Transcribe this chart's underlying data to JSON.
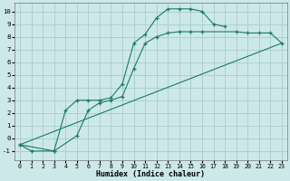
{
  "xlabel": "Humidex (Indice chaleur)",
  "bg_color": "#cde8e8",
  "grid_color": "#aacccc",
  "line_color": "#1a7a6a",
  "xlim": [
    -0.5,
    23.5
  ],
  "ylim": [
    -1.7,
    10.7
  ],
  "xticks": [
    0,
    1,
    2,
    3,
    4,
    5,
    6,
    7,
    8,
    9,
    10,
    11,
    12,
    13,
    14,
    15,
    16,
    17,
    18,
    19,
    20,
    21,
    22,
    23
  ],
  "yticks": [
    -1,
    0,
    1,
    2,
    3,
    4,
    5,
    6,
    7,
    8,
    9,
    10
  ],
  "curve1_x": [
    0,
    1,
    3,
    4,
    5,
    6,
    7,
    8,
    9,
    10,
    11,
    12,
    13,
    14,
    15,
    16,
    17,
    18
  ],
  "curve1_y": [
    -0.5,
    -1.0,
    -1.0,
    2.2,
    3.0,
    3.0,
    3.0,
    3.2,
    4.3,
    7.5,
    8.2,
    9.5,
    10.2,
    10.2,
    10.2,
    10.0,
    9.0,
    8.8
  ],
  "curve2_x": [
    0,
    3,
    5,
    6,
    7,
    8,
    9,
    10,
    11,
    12,
    13,
    14,
    15,
    16,
    19,
    20,
    21,
    22,
    23
  ],
  "curve2_y": [
    -0.5,
    -1.0,
    0.2,
    2.2,
    2.8,
    3.0,
    3.3,
    5.5,
    7.5,
    8.0,
    8.3,
    8.4,
    8.4,
    8.4,
    8.4,
    8.3,
    8.3,
    8.3,
    7.5
  ],
  "curve3_x": [
    0,
    23
  ],
  "curve3_y": [
    -0.5,
    7.5
  ],
  "xlabel_fontsize": 6.0,
  "tick_fontsize": 4.8,
  "ytick_fontsize": 5.2,
  "linewidth": 0.8,
  "markersize": 3.5
}
